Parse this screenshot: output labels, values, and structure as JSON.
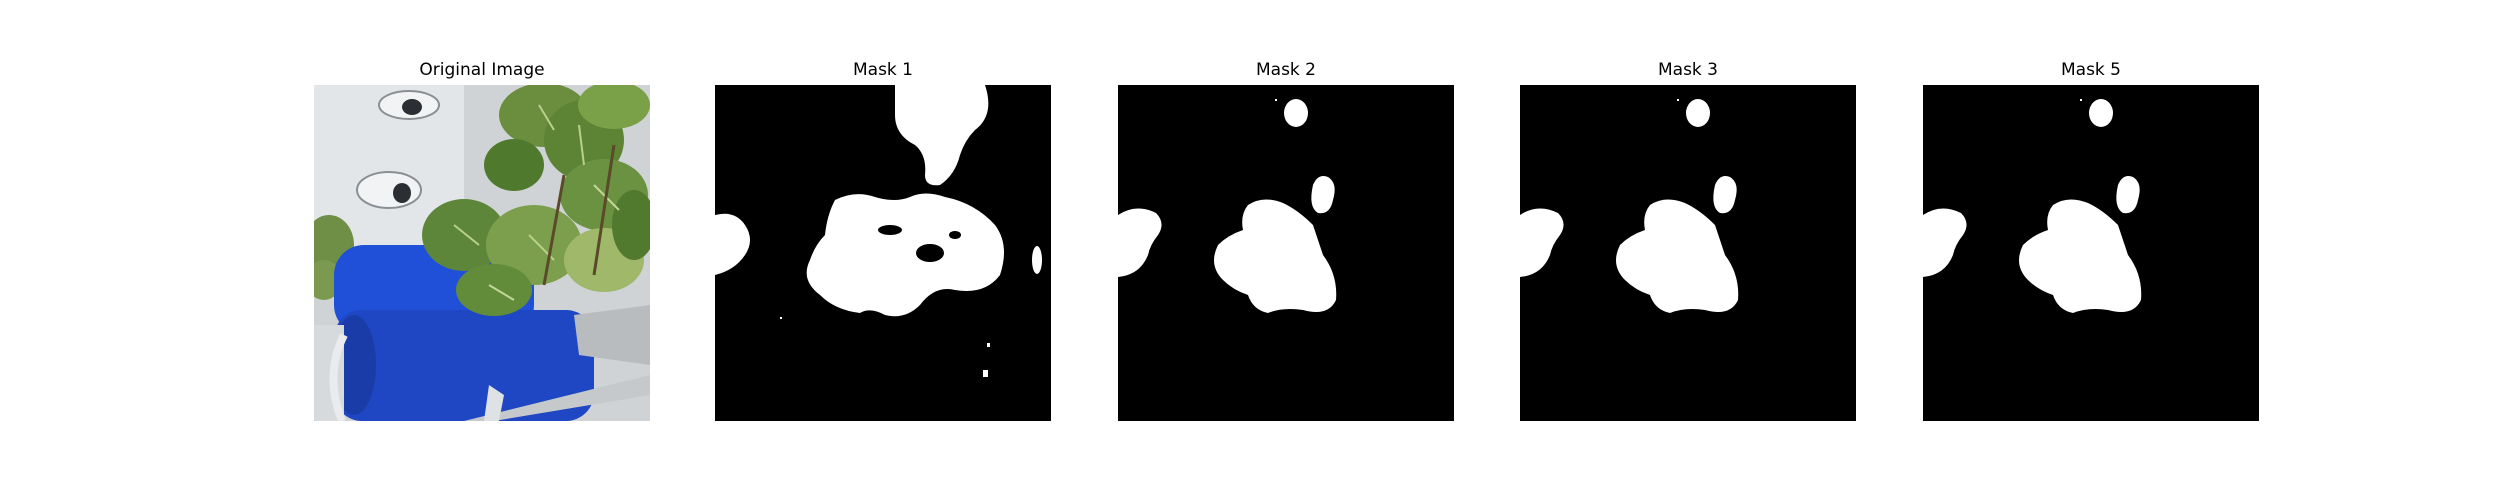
{
  "figure": {
    "panels": [
      {
        "title": "Original Image"
      },
      {
        "title": "Mask 1"
      },
      {
        "title": "Mask 2"
      },
      {
        "title": "Mask 3"
      },
      {
        "title": "Mask 5"
      }
    ]
  },
  "colors": {
    "background": "#ffffff",
    "mask_background": "#000000",
    "mask_foreground": "#ffffff",
    "leaf_green": "#5f8f3a",
    "barrel_blue": "#1f4fd6",
    "tower_white": "#d9dde0"
  }
}
